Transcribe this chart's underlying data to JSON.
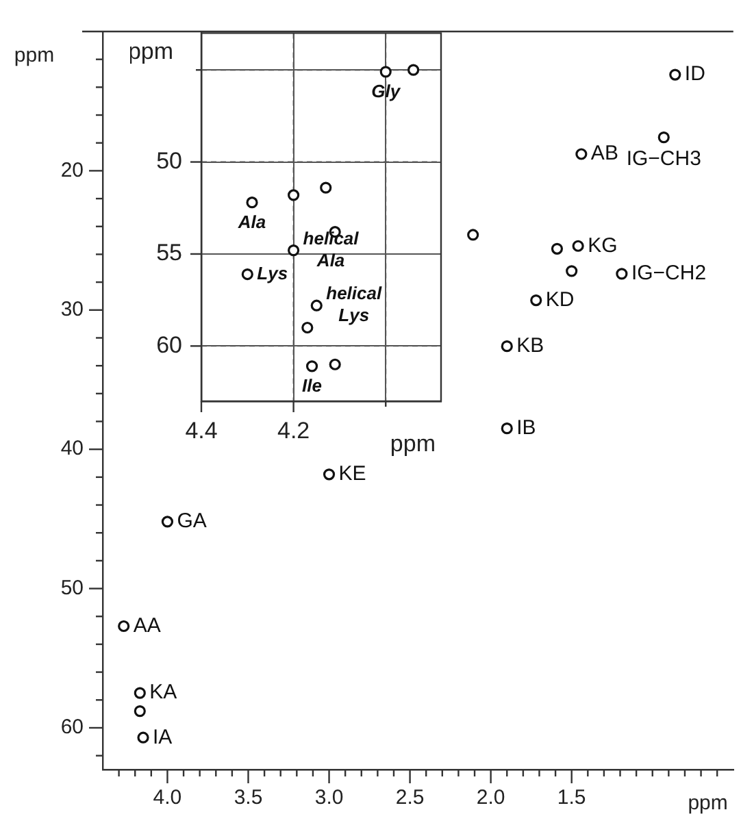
{
  "chart_data": [
    {
      "type": "scatter",
      "xlabel": "ppm",
      "ylabel": "ppm",
      "xlim": [
        4.4,
        0.5
      ],
      "ylim": [
        63,
        10
      ],
      "xticks": [
        {
          "value": 4.3,
          "label": null
        },
        {
          "value": 4.2,
          "label": null
        },
        {
          "value": 4.1,
          "label": null
        },
        "4.0",
        {
          "value": 3.9,
          "label": null
        },
        {
          "value": 3.8,
          "label": null
        },
        {
          "value": 3.7,
          "label": null
        },
        {
          "value": 3.6,
          "label": null
        },
        3.5,
        {
          "value": 3.4,
          "label": null
        },
        {
          "value": 3.3,
          "label": null
        },
        {
          "value": 3.2,
          "label": null
        },
        {
          "value": 3.1,
          "label": null
        },
        {
          "value": 3,
          "label": "3.0"
        },
        {
          "value": 2.9,
          "label": null
        },
        {
          "value": 2.8,
          "label": null
        },
        {
          "value": 2.7,
          "label": null
        },
        {
          "value": 2.6,
          "label": null
        },
        2.5,
        {
          "value": 2.4,
          "label": null
        },
        {
          "value": 2.3,
          "label": null
        },
        {
          "value": 2.2,
          "label": null
        },
        {
          "value": 2.1,
          "label": null
        },
        {
          "value": 2,
          "label": "2.0"
        },
        {
          "value": 1.9,
          "label": null
        },
        {
          "value": 1.8,
          "label": null
        },
        {
          "value": 1.7,
          "label": null
        },
        {
          "value": 1.6,
          "label": null
        },
        1.5,
        {
          "value": 1.4,
          "label": null
        },
        {
          "value": 1.3,
          "label": null
        },
        {
          "value": 1.2,
          "label": null
        },
        {
          "value": 1.1,
          "label": null
        },
        {
          "value": 1,
          "label": null
        },
        {
          "value": 0.9,
          "label": null
        },
        {
          "value": 0.8,
          "label": null
        },
        {
          "value": 0.7,
          "label": null
        },
        {
          "value": 0.6,
          "label": null
        }
      ],
      "yticks": [
        {
          "value": 12,
          "label": null
        },
        {
          "value": 14,
          "label": null
        },
        {
          "value": 16,
          "label": null
        },
        {
          "value": 18,
          "label": null
        },
        20,
        {
          "value": 22,
          "label": null
        },
        {
          "value": 24,
          "label": null
        },
        {
          "value": 26,
          "label": null
        },
        {
          "value": 28,
          "label": null
        },
        30,
        {
          "value": 32,
          "label": null
        },
        {
          "value": 34,
          "label": null
        },
        {
          "value": 36,
          "label": null
        },
        {
          "value": 38,
          "label": null
        },
        40,
        {
          "value": 42,
          "label": null
        },
        {
          "value": 44,
          "label": null
        },
        {
          "value": 46,
          "label": null
        },
        {
          "value": 48,
          "label": null
        },
        50,
        {
          "value": 52,
          "label": null
        },
        {
          "value": 54,
          "label": null
        },
        {
          "value": 56,
          "label": null
        },
        {
          "value": 58,
          "label": null
        },
        60,
        {
          "value": 62,
          "label": null
        }
      ],
      "marker": "circle",
      "series": [
        {
          "color": "#111111",
          "x": [
            0.86,
            0.93,
            1.44,
            1.46,
            1.59,
            1.19,
            1.5,
            1.72,
            1.9,
            1.9,
            2.11,
            3.0,
            4.0,
            4.27,
            4.17,
            4.17,
            4.15
          ],
          "values": [
            13.1,
            17.6,
            18.8,
            25.4,
            25.6,
            27.4,
            27.2,
            29.3,
            32.6,
            38.5,
            24.6,
            41.8,
            45.2,
            52.7,
            57.5,
            58.8,
            60.7
          ]
        }
      ],
      "annotations": [
        {
          "text": "ID",
          "x": 0.86,
          "y": 13.1
        },
        {
          "text": "AB",
          "x": 1.44,
          "y": 18.8
        },
        {
          "text": "IG−CH3",
          "x": 0.93,
          "y": 17.6
        },
        {
          "text": "KG",
          "x": 1.46,
          "y": 25.4
        },
        {
          "text": "IG−CH2",
          "x": 1.19,
          "y": 27.4
        },
        {
          "text": "KD",
          "x": 1.72,
          "y": 29.3
        },
        {
          "text": "KB",
          "x": 1.9,
          "y": 32.6
        },
        {
          "text": "IB",
          "x": 1.9,
          "y": 38.5
        },
        {
          "text": "KE",
          "x": 3.0,
          "y": 41.8
        },
        {
          "text": "GA",
          "x": 4.0,
          "y": 45.2
        },
        {
          "text": "AA",
          "x": 4.27,
          "y": 52.7
        },
        {
          "text": "KA",
          "x": 4.17,
          "y": 57.5
        },
        {
          "text": "IA",
          "x": 4.15,
          "y": 60.7
        }
      ]
    },
    {
      "type": "scatter",
      "xlabel": "ppm",
      "ylabel": "ppm",
      "xlim": [
        4.4,
        3.88
      ],
      "ylim": [
        63,
        43
      ],
      "xticks": [
        4.4,
        4.2,
        {
          "value": 4.0,
          "label": null
        }
      ],
      "yticks": [
        {
          "value": 45,
          "label": null
        },
        50,
        55,
        60
      ],
      "grid": true,
      "marker": "circle",
      "series": [
        {
          "color": "#111111",
          "x": [
            4.0,
            3.94,
            4.29,
            4.2,
            4.13,
            4.11,
            4.2,
            4.3,
            4.15,
            4.17,
            4.16,
            4.11
          ],
          "values": [
            45.1,
            45.0,
            52.2,
            51.8,
            51.4,
            53.8,
            54.8,
            56.1,
            57.8,
            59.0,
            61.1,
            61.0
          ]
        }
      ],
      "annotations": [
        {
          "text": "Gly",
          "x": 4.0,
          "y": 45.1
        },
        {
          "text": "Ala",
          "x": 4.29,
          "y": 52.2
        },
        {
          "text": "helical\nAla",
          "x": 4.2,
          "y": 54.8
        },
        {
          "text": "Lys",
          "x": 4.3,
          "y": 56.1
        },
        {
          "text": "helical\nLys",
          "x": 4.15,
          "y": 57.8
        },
        {
          "text": "Ile",
          "x": 4.16,
          "y": 61.1
        }
      ]
    }
  ]
}
